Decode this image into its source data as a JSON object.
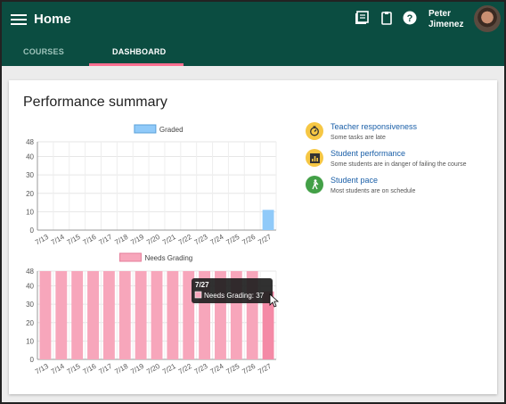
{
  "app": {
    "title": "Home",
    "user_name_line1": "Peter",
    "user_name_line2": "Jimenez"
  },
  "icons": {
    "menu": "menu-icon",
    "news": "news-icon",
    "clipboard": "clipboard-icon",
    "help": "help-icon"
  },
  "tabs": [
    {
      "label": "COURSES"
    },
    {
      "label": "DASHBOARD"
    }
  ],
  "colors": {
    "appbar": "#0b4d41",
    "tab_underline": "#ff6f91",
    "graded": "#90caf9",
    "needs_grading": "#f7a6bb",
    "needs_grading_active": "#f48aa6"
  },
  "card": {
    "title": "Performance summary"
  },
  "summary": [
    {
      "title": "Teacher responsiveness",
      "subtitle": "Some tasks are late",
      "icon": "timer-icon",
      "color": "#f6c744"
    },
    {
      "title": "Student performance",
      "subtitle": "Some students are in danger of failing the course",
      "icon": "bar-chart-icon",
      "color": "#f6c744"
    },
    {
      "title": "Student pace",
      "subtitle": "Most students are on schedule",
      "icon": "walk-icon",
      "color": "#43a047"
    }
  ],
  "chart_data": [
    {
      "type": "bar",
      "categories": [
        "7/13",
        "7/14",
        "7/15",
        "7/16",
        "7/17",
        "7/18",
        "7/19",
        "7/20",
        "7/21",
        "7/22",
        "7/23",
        "7/24",
        "7/25",
        "7/26",
        "7/27"
      ],
      "series": [
        {
          "name": "Graded",
          "values": [
            0,
            0,
            0,
            0,
            0,
            0,
            0,
            0,
            0,
            0,
            0,
            0,
            0,
            0,
            11
          ]
        }
      ],
      "yticks": [
        "0",
        "10",
        "20",
        "30",
        "40",
        "48"
      ],
      "ylim": [
        0,
        48
      ],
      "grid": true,
      "legend": "top-center"
    },
    {
      "type": "bar",
      "categories": [
        "7/13",
        "7/14",
        "7/15",
        "7/16",
        "7/17",
        "7/18",
        "7/19",
        "7/20",
        "7/21",
        "7/22",
        "7/23",
        "7/24",
        "7/25",
        "7/26",
        "7/27"
      ],
      "series": [
        {
          "name": "Needs Grading",
          "values": [
            48,
            48,
            48,
            48,
            48,
            48,
            48,
            48,
            48,
            48,
            48,
            48,
            48,
            48,
            37
          ]
        }
      ],
      "yticks": [
        "0",
        "10",
        "20",
        "30",
        "40",
        "48"
      ],
      "ylim": [
        0,
        48
      ],
      "grid": true,
      "legend": "top-center",
      "tooltip": {
        "title": "7/27",
        "label": "Needs Grading: 37"
      }
    }
  ]
}
